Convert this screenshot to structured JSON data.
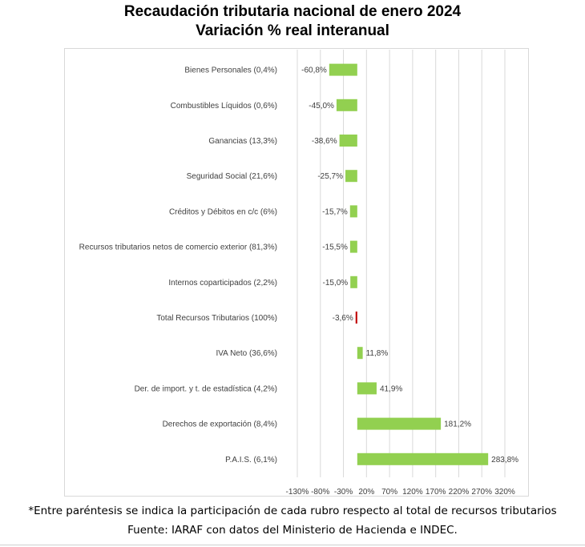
{
  "chart_data": {
    "type": "bar",
    "orientation": "horizontal",
    "title": "Recaudación tributaria nacional de enero 2024",
    "subtitle": "Variación % real interanual",
    "categories": [
      "Bienes Personales (0,4%)",
      "Combustibles Líquidos (0,6%)",
      "Ganancias (13,3%)",
      "Seguridad Social (21,6%)",
      "Créditos y Débitos en c/c (6%)",
      "Recursos tributarios netos de comercio exterior (81,3%)",
      "Internos coparticipados (2,2%)",
      "Total Recursos Tributarios (100%)",
      "IVA Neto (36,6%)",
      "Der. de import. y t. de estadística (4,2%)",
      "Derechos de exportación (8,4%)",
      "P.A.I.S. (6,1%)"
    ],
    "values": [
      -60.8,
      -45.0,
      -38.6,
      -25.7,
      -15.7,
      -15.5,
      -15.0,
      -3.6,
      11.8,
      41.9,
      181.2,
      283.8
    ],
    "value_labels": [
      "-60,8%",
      "-45,0%",
      "-38,6%",
      "-25,7%",
      "-15,7%",
      "-15,5%",
      "-15,0%",
      "-3,6%",
      "11,8%",
      "41,9%",
      "181,2%",
      "283,8%"
    ],
    "bar_colors": [
      "#92d050",
      "#92d050",
      "#92d050",
      "#92d050",
      "#92d050",
      "#92d050",
      "#92d050",
      "#c00000",
      "#92d050",
      "#92d050",
      "#92d050",
      "#92d050"
    ],
    "xlim": [
      -130,
      320
    ],
    "xticks": [
      -130,
      -80,
      -30,
      20,
      70,
      120,
      170,
      220,
      270,
      320
    ],
    "xtick_labels": [
      "-130%",
      "-80%",
      "-30%",
      "20%",
      "70%",
      "120%",
      "170%",
      "220%",
      "270%",
      "320%"
    ],
    "grid": true,
    "legend": "none"
  },
  "footnotes": {
    "note": "*Entre paréntesis se indica la participación de cada rubro respecto al total de recursos tributarios",
    "source": "Fuente: IARAF con datos del Ministerio de Hacienda e INDEC."
  },
  "colors": {
    "positive_bar": "#92d050",
    "total_bar": "#c00000",
    "grid": "#d9d9d9"
  }
}
